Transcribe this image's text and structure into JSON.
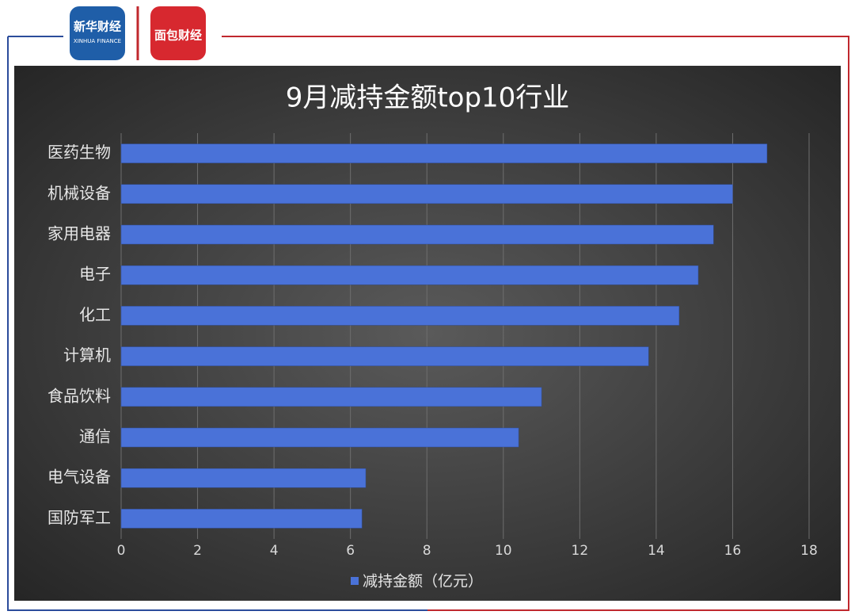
{
  "header": {
    "logo1": "新华财经",
    "logo1_sub": "XINHUA FINANCE",
    "logo2": "面包财经"
  },
  "chart_data": {
    "type": "hbar",
    "title": "9月减持金额top10行业",
    "categories": [
      "医药生物",
      "机械设备",
      "家用电器",
      "电子",
      "化工",
      "计算机",
      "食品饮料",
      "通信",
      "电气设备",
      "国防军工"
    ],
    "series": [
      {
        "name": "减持金额（亿元）",
        "color": "#4a72d8",
        "values": [
          16.9,
          16.0,
          15.5,
          15.1,
          14.6,
          13.8,
          11.0,
          10.4,
          6.4,
          6.3
        ]
      }
    ],
    "xlim": [
      0,
      18
    ],
    "xticks": [
      0,
      2,
      4,
      6,
      8,
      10,
      12,
      14,
      16,
      18
    ],
    "grid": true,
    "legend": "bottom"
  }
}
